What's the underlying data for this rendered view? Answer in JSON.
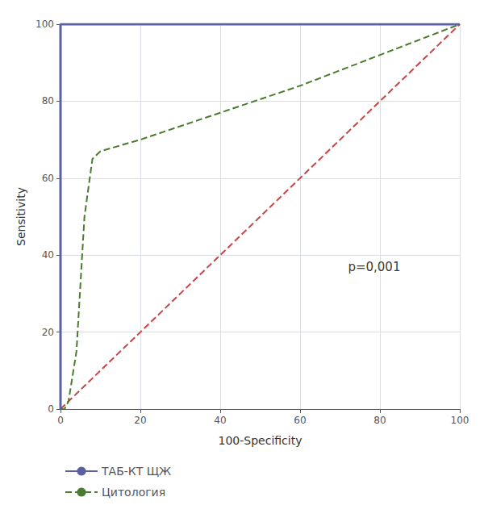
{
  "chart_data": {
    "type": "line",
    "title": "",
    "xlabel": "100-Specificity",
    "ylabel": "Sensitivity",
    "xlim": [
      0,
      100
    ],
    "ylim": [
      0,
      100
    ],
    "xticks": [
      0,
      20,
      40,
      60,
      80,
      100
    ],
    "yticks": [
      0,
      20,
      40,
      60,
      80,
      100
    ],
    "grid": true,
    "legend": "bottom",
    "annotations": [
      {
        "text": "p=0,001",
        "x": 72,
        "y": 37
      }
    ],
    "series": [
      {
        "color": "#c94444",
        "line_style": "dashed",
        "x": [
          0,
          100
        ],
        "values": [
          0,
          100
        ]
      },
      {
        "name": "Цитология",
        "color": "#4a7c30",
        "line_style": "dashed",
        "x": [
          0,
          1,
          2,
          4,
          6,
          8,
          10,
          20,
          40,
          60,
          80,
          100
        ],
        "values": [
          0,
          0,
          2,
          15,
          50,
          65,
          67,
          70,
          77,
          84,
          92,
          100
        ]
      },
      {
        "name": "ТАБ-КТ ЩЖ",
        "color": "#5c5fa0",
        "line_style": "solid",
        "x": [
          0,
          0,
          100
        ],
        "values": [
          0,
          100,
          100
        ]
      }
    ]
  }
}
